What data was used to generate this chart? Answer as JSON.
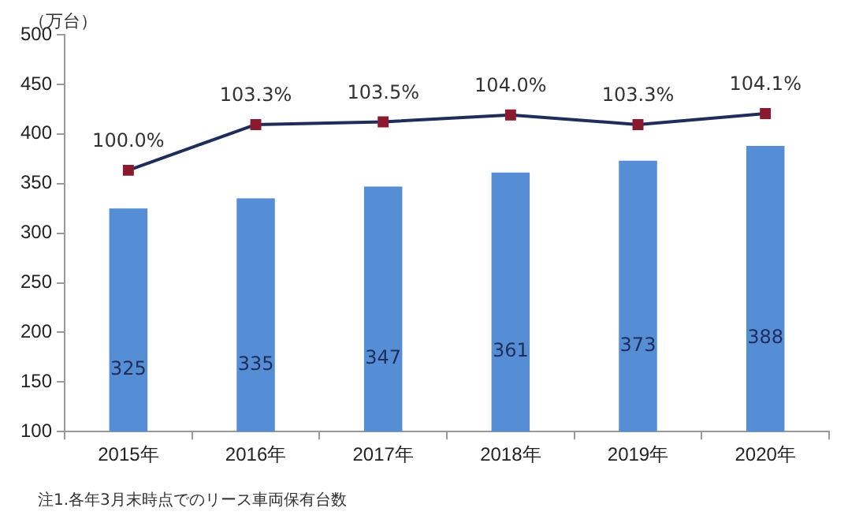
{
  "chart_data": {
    "type": "bar",
    "ylabel": "（万台）",
    "categories": [
      "2015年",
      "2016年",
      "2017年",
      "2018年",
      "2019年",
      "2020年"
    ],
    "ylim": [
      100,
      500
    ],
    "yticks": [
      100,
      150,
      200,
      250,
      300,
      350,
      400,
      450,
      500
    ],
    "y2lim": [
      81.1,
      109.8
    ],
    "grid": false,
    "legend": false,
    "marker": "square",
    "line_style": "solid",
    "series": [
      {
        "color": "#558ed5",
        "values": [
          325,
          335,
          347,
          361,
          373,
          388
        ],
        "value_labels": [
          "325",
          "335",
          "347",
          "361",
          "373",
          "388"
        ]
      },
      {
        "type": "line",
        "axis": "y2",
        "color": "#1f2d5a",
        "values": [
          100.0,
          103.3,
          103.5,
          104.0,
          103.3,
          104.1
        ],
        "value_labels": [
          "100.0%",
          "103.3%",
          "103.5%",
          "104.0%",
          "103.3%",
          "104.1%"
        ]
      }
    ],
    "annotations": [
      "注1.各年3月末時点でのリース車両保有台数"
    ]
  }
}
